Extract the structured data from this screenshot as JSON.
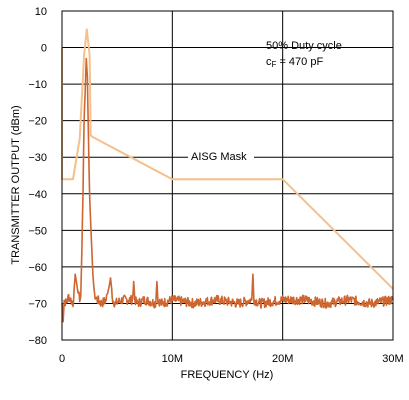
{
  "chart_data": {
    "type": "line",
    "xlabel": "FREQUENCY (Hz)",
    "ylabel": "TRANSMITTER OUTPUT (dBm)",
    "xlim": [
      0,
      30000000
    ],
    "ylim": [
      -80,
      10
    ],
    "x_ticks": [
      {
        "value": 0,
        "label": "0"
      },
      {
        "value": 10000000,
        "label": "10M"
      },
      {
        "value": 20000000,
        "label": "20M"
      },
      {
        "value": 30000000,
        "label": "30M"
      }
    ],
    "y_ticks": [
      {
        "value": 10,
        "label": "10"
      },
      {
        "value": 0,
        "label": "0"
      },
      {
        "value": -10,
        "label": "−10"
      },
      {
        "value": -20,
        "label": "−20"
      },
      {
        "value": -30,
        "label": "−30"
      },
      {
        "value": -40,
        "label": "−40"
      },
      {
        "value": -50,
        "label": "−50"
      },
      {
        "value": -60,
        "label": "−60"
      },
      {
        "value": -70,
        "label": "−70"
      },
      {
        "value": -80,
        "label": "−80"
      }
    ],
    "grid": true,
    "annotations": {
      "condition_line1": "50% Duty cycle",
      "condition_line2_main": "c",
      "condition_line2_sub": "F",
      "condition_line2_rest": " = 470 pF",
      "mask_label": "AISG Mask"
    },
    "series": [
      {
        "color": "#F5C08A",
        "x": [
          0,
          0,
          1000000,
          1600000,
          2000000,
          2250000,
          2500000,
          2600000,
          2800000,
          10000000,
          20000000,
          30000000
        ],
        "y": [
          0,
          -36,
          -36,
          -25,
          -2,
          5,
          -2,
          -24,
          -24.5,
          -36,
          -36,
          -66
        ]
      },
      {
        "color": "#CD6630",
        "noise_floor_dbm": -69,
        "x": [
          0,
          100000,
          200000,
          400000,
          600000,
          800000,
          1000000,
          1200000,
          1500000,
          1700000,
          1800000,
          1900000,
          2000000,
          2100000,
          2200000,
          2300000,
          2400000,
          2500000,
          2600000,
          2700000,
          2800000,
          2900000,
          3000000,
          3200000,
          3600000,
          4000000,
          4300000,
          4400000,
          4500000,
          4600000,
          4800000,
          5500000,
          6400000,
          6500000,
          6600000,
          6800000,
          7500000,
          8500000,
          8600000,
          8700000,
          9000000,
          10000000,
          12000000,
          14000000,
          16000000,
          17200000,
          17300000,
          17400000,
          18000000,
          20000000,
          22000000,
          24000000,
          26000000,
          28000000,
          30000000
        ],
        "y": [
          -70,
          -74,
          -69,
          -70,
          -68,
          -69,
          -70,
          -62,
          -68,
          -69,
          -55,
          -40,
          -20,
          -12,
          -3,
          -8,
          -25,
          -40,
          -48,
          -55,
          -62,
          -66,
          -68,
          -69,
          -70,
          -69,
          -65,
          -63,
          -66,
          -69,
          -70,
          -69,
          -69,
          -64,
          -69,
          -70,
          -69,
          -70,
          -64,
          -69,
          -70,
          -69,
          -70,
          -69,
          -70,
          -69,
          -62,
          -69,
          -70,
          -69,
          -69,
          -70,
          -69,
          -70,
          -69
        ]
      }
    ]
  }
}
